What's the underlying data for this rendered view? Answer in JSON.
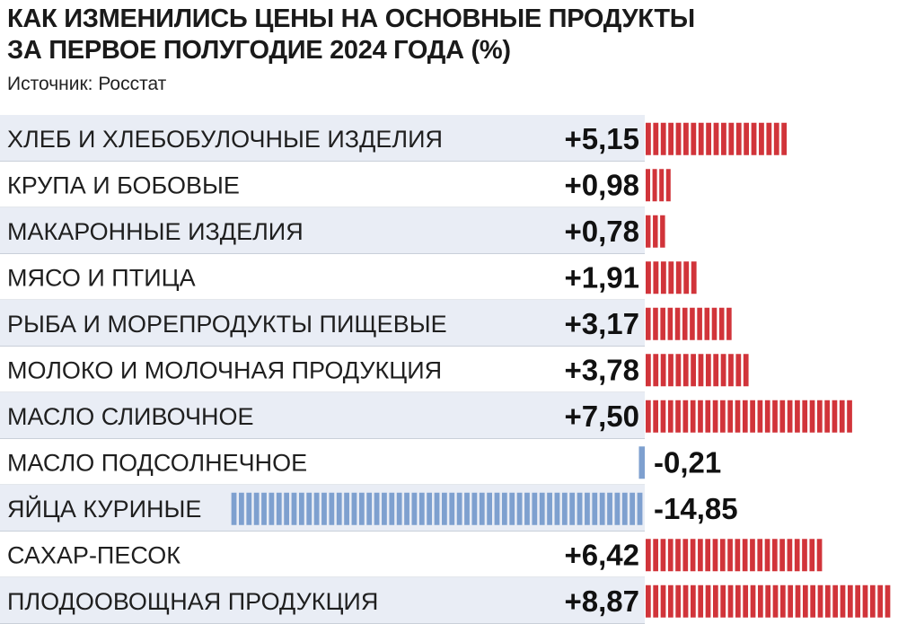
{
  "title_line1": "КАК ИЗМЕНИЛИСЬ ЦЕНЫ НА ОСНОВНЫЕ ПРОДУКТЫ",
  "title_line2": "ЗА ПЕРВОЕ ПОЛУГОДИЕ 2024 ГОДА (%)",
  "source": "Источник: Росстат",
  "colors": {
    "positive": "#d1343a",
    "negative": "#7ea0cf",
    "row_shade": "#e9edf5",
    "separator": "#c9cfd9"
  },
  "chart_data": {
    "type": "bar",
    "orientation": "horizontal",
    "title": "КАК ИЗМЕНИЛИСЬ ЦЕНЫ НА ОСНОВНЫЕ ПРОДУКТЫ ЗА ПЕРВОЕ ПОЛУГОДИЕ 2024 ГОДА (%)",
    "categories": [
      "ХЛЕБ И ХЛЕБОБУЛОЧНЫЕ ИЗДЕЛИЯ",
      "КРУПА И БОБОВЫЕ",
      "МАКАРОННЫЕ ИЗДЕЛИЯ",
      "МЯСО И ПТИЦА",
      "РЫБА И МОРЕПРОДУКТЫ ПИЩЕВЫЕ",
      "МОЛОКО И МОЛОЧНАЯ ПРОДУКЦИЯ",
      "МАСЛО СЛИВОЧНОЕ",
      "МАСЛО ПОДСОЛНЕЧНОЕ",
      "ЯЙЦА КУРИНЫЕ",
      "САХАР-ПЕСОК",
      "ПЛОДООВОЩНАЯ ПРОДУКЦИЯ"
    ],
    "values": [
      5.15,
      0.98,
      0.78,
      1.91,
      3.17,
      3.78,
      7.5,
      -0.21,
      -14.85,
      6.42,
      8.87
    ],
    "value_labels": [
      "+5,15",
      "+0,98",
      "+0,78",
      "+1,91",
      "+3,17",
      "+3,78",
      "+7,50",
      "-0,21",
      "-14,85",
      "+6,42",
      "+8,87"
    ],
    "xlabel": "",
    "ylabel": "",
    "grid": false
  }
}
